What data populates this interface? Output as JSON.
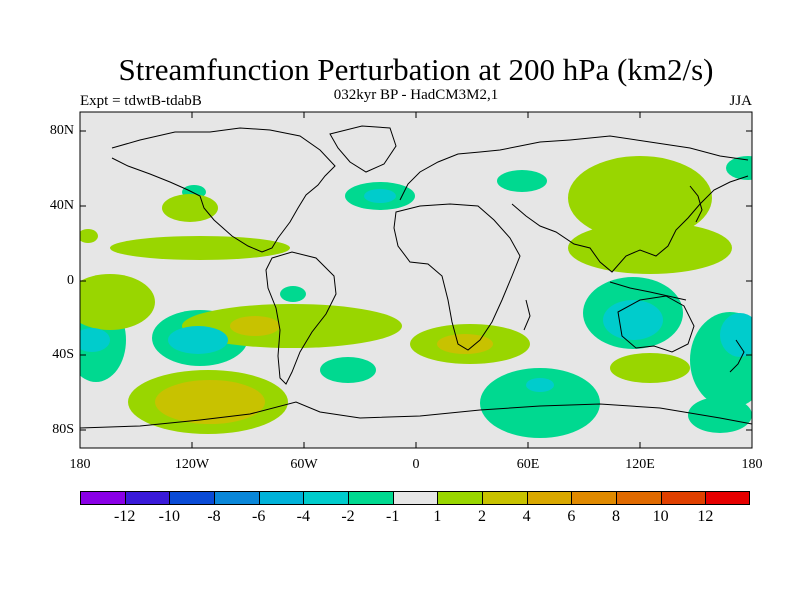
{
  "title": "Streamfunction Perturbation at 200 hPa (km2/s)",
  "subtitle": "032kyr BP - HadCM3M2,1",
  "experiment": "Expt = tdwtB-tdabB",
  "season": "JJA",
  "axes": {
    "y_labels": [
      "80N",
      "40N",
      "0",
      "40S",
      "80S"
    ],
    "x_labels": [
      "180",
      "120W",
      "60W",
      "0",
      "60E",
      "120E",
      "180"
    ]
  },
  "map_colors": {
    "background": "#e6e6e6",
    "neg1": "#00d990",
    "neg2": "#00cccc",
    "pos1": "#99d600",
    "pos2": "#c8c200"
  },
  "colorbar": {
    "colors": [
      "#8a00e6",
      "#3a1ad9",
      "#0a4bd6",
      "#0a87d9",
      "#00b2d9",
      "#00cccc",
      "#00d990",
      "#e6e6e6",
      "#99d600",
      "#c8c200",
      "#d9a800",
      "#e08a00",
      "#e06a00",
      "#e04000",
      "#e60000"
    ],
    "labels": [
      "-12",
      "-10",
      "-8",
      "-6",
      "-4",
      "-2",
      "-1",
      "1",
      "2",
      "4",
      "6",
      "8",
      "10",
      "12"
    ]
  }
}
